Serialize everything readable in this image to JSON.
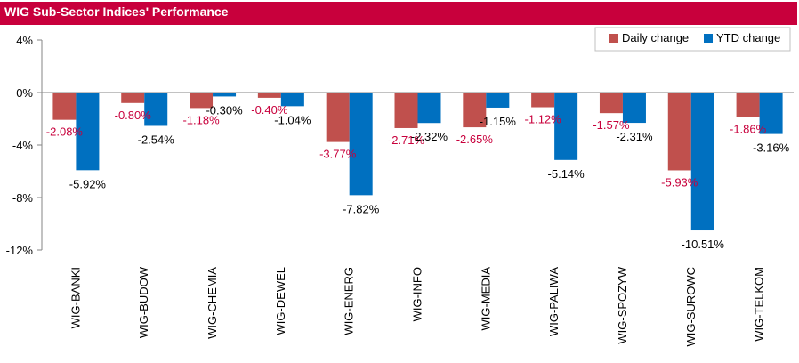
{
  "title": "WIG Sub-Sector Indices' Performance",
  "colors": {
    "title_bg": "#c8003c",
    "daily": "#c0504d",
    "ytd": "#0070c0",
    "daily_label": "#c8003c",
    "ytd_label": "#000000"
  },
  "chart_data": {
    "type": "bar",
    "title": "WIG Sub-Sector Indices' Performance",
    "categories": [
      "WIG-BANKI",
      "WIG-BUDOW",
      "WIG-CHEMIA",
      "WIG-DEWEL",
      "WIG-ENERG",
      "WIG-INFO",
      "WIG-MEDIA",
      "WIG-PALIWA",
      "WIG-SPOZYW",
      "WIG-SUROWC",
      "WIG-TELKOM"
    ],
    "series": [
      {
        "name": "Daily change",
        "values": [
          -2.08,
          -0.8,
          -1.18,
          -0.4,
          -3.77,
          -2.71,
          -2.65,
          -1.12,
          -1.57,
          -5.93,
          -1.86
        ],
        "labels": [
          "-2.08%",
          "-0.80%",
          "-1.18%",
          "-0.40%",
          "-3.77%",
          "-2.71%",
          "-2.65%",
          "-1.12%",
          "-1.57%",
          "-5.93%",
          "-1.86%"
        ]
      },
      {
        "name": "YTD change",
        "values": [
          -5.92,
          -2.54,
          -0.3,
          -1.04,
          -7.82,
          -2.32,
          -1.15,
          -5.14,
          -2.31,
          -10.51,
          -3.16
        ],
        "labels": [
          "-5.92%",
          "-2.54%",
          "-0.30%",
          "-1.04%",
          "-7.82%",
          "-2.32%",
          "-1.15%",
          "-5.14%",
          "-2.31%",
          "-10.51%",
          "-3.16%"
        ]
      }
    ],
    "y_ticks": [
      4,
      0,
      -4,
      -8,
      -12
    ],
    "y_tick_labels": [
      "4%",
      "0%",
      "-4%",
      "-8%",
      "-12%"
    ],
    "ylim": [
      -12,
      4
    ],
    "grid": false,
    "legend_position": "top-right"
  }
}
